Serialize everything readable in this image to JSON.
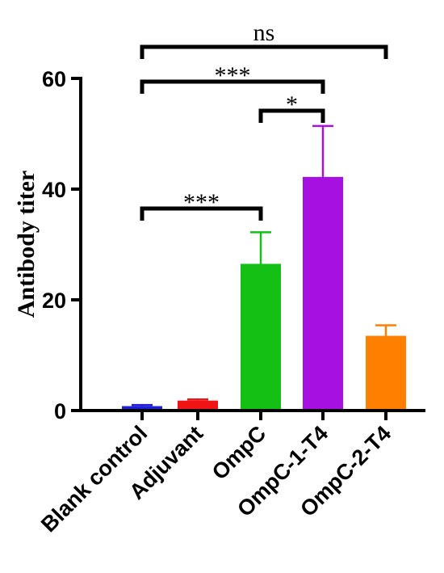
{
  "chart_data": {
    "type": "bar",
    "title": "",
    "xlabel": "",
    "ylabel": "Antibody titer",
    "ylim": [
      0,
      60
    ],
    "yticks": [
      0,
      20,
      40,
      60
    ],
    "categories": [
      "Blank control",
      "Adjuvant",
      "OmpC",
      "OmpC-1-T4",
      "OmpC-2-T4"
    ],
    "values": [
      0.8,
      1.8,
      26.5,
      42.2,
      13.5
    ],
    "errors": [
      0.2,
      0.2,
      5.7,
      9.2,
      1.9
    ],
    "colors": [
      "#1f1fd6",
      "#f01414",
      "#14c014",
      "#a610e0",
      "#ff7f00"
    ],
    "significance": [
      {
        "from": 0,
        "to": 4,
        "label": "ns"
      },
      {
        "from": 0,
        "to": 3,
        "label": "***"
      },
      {
        "from": 2,
        "to": 3,
        "label": "*"
      },
      {
        "from": 0,
        "to": 2,
        "label": "***"
      }
    ],
    "grid": false,
    "legend": "none"
  }
}
